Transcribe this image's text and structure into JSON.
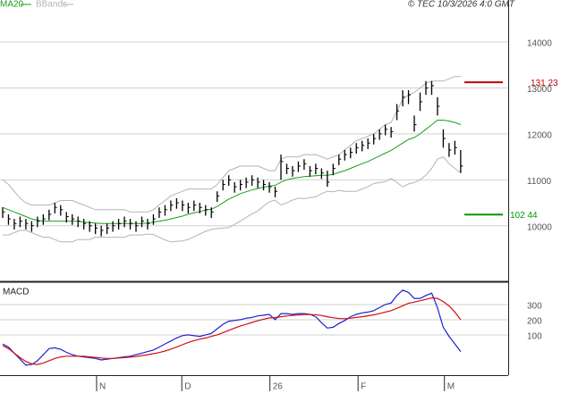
{
  "chart_data": [
    {
      "type": "ohlc",
      "source": "© TEC 10/3/2026 4:0 GMT",
      "xlim": [
        -0.46,
        87.2
      ],
      "ylim": [
        8790,
        14915
      ],
      "yticks": [
        {
          "value": 10000,
          "label": "10000"
        },
        {
          "value": 11000,
          "label": "11000"
        },
        {
          "value": 12000,
          "label": "12000"
        },
        {
          "value": 13000,
          "label": "13000"
        },
        {
          "value": 14000,
          "label": "14000"
        }
      ],
      "grid": true,
      "bar_color": "#000000",
      "high": [
        10400,
        10250,
        10150,
        10200,
        10150,
        10100,
        10200,
        10250,
        10350,
        10500,
        10450,
        10300,
        10250,
        10200,
        10150,
        10100,
        10050,
        10000,
        10050,
        10100,
        10150,
        10200,
        10150,
        10100,
        10200,
        10150,
        10250,
        10400,
        10450,
        10550,
        10600,
        10550,
        10500,
        10550,
        10500,
        10450,
        10400,
        10750,
        11000,
        11100,
        10950,
        11000,
        11050,
        11100,
        11050,
        11000,
        10950,
        10850,
        11550,
        11350,
        11300,
        11400,
        11450,
        11300,
        11350,
        11250,
        11200,
        11350,
        11550,
        11650,
        11700,
        11800,
        11850,
        11900,
        12000,
        12100,
        12200,
        12150,
        12650,
        12950,
        12950,
        12400,
        12900,
        13150,
        13150,
        12800,
        12100,
        11800,
        11850,
        11650
      ],
      "low": [
        10170,
        10020,
        9920,
        9970,
        9920,
        9870,
        9970,
        10020,
        10120,
        10270,
        10220,
        10070,
        10020,
        9970,
        9920,
        9870,
        9820,
        9770,
        9820,
        9870,
        9920,
        9970,
        9920,
        9870,
        9970,
        9920,
        10020,
        10170,
        10220,
        10320,
        10370,
        10320,
        10270,
        10320,
        10270,
        10220,
        10170,
        10520,
        10770,
        10870,
        10720,
        10770,
        10820,
        10870,
        10820,
        10770,
        10720,
        10620,
        11000,
        11120,
        11070,
        11170,
        11220,
        11070,
        11120,
        11020,
        10850,
        11100,
        11320,
        11420,
        11470,
        11570,
        11620,
        11670,
        11770,
        11870,
        11970,
        11920,
        12300,
        12600,
        12650,
        12050,
        12500,
        12850,
        12850,
        12400,
        11700,
        11500,
        11550,
        11150
      ],
      "close": [
        10300,
        10150,
        10050,
        10100,
        10050,
        10000,
        10100,
        10150,
        10250,
        10400,
        10350,
        10200,
        10150,
        10100,
        10050,
        10000,
        9950,
        9900,
        9950,
        10000,
        10050,
        10100,
        10050,
        10000,
        10100,
        10050,
        10150,
        10300,
        10350,
        10450,
        10500,
        10450,
        10400,
        10450,
        10400,
        10350,
        10300,
        10650,
        10900,
        11000,
        10850,
        10900,
        10950,
        11000,
        10950,
        10900,
        10850,
        10750,
        11400,
        11250,
        11200,
        11300,
        11350,
        11200,
        11250,
        11150,
        10950,
        11250,
        11450,
        11550,
        11600,
        11700,
        11750,
        11800,
        11900,
        12000,
        12100,
        12050,
        12500,
        12800,
        12850,
        12200,
        12700,
        13000,
        13050,
        12600,
        11900,
        11650,
        11700,
        11300
      ],
      "series": [
        {
          "name": "MA20",
          "color": "#1a9e1a",
          "values": [
            10400,
            10350,
            10300,
            10250,
            10200,
            10150,
            10120,
            10100,
            10100,
            10100,
            10100,
            10100,
            10100,
            10100,
            10080,
            10070,
            10060,
            10050,
            10050,
            10050,
            10050,
            10050,
            10050,
            10050,
            10050,
            10060,
            10080,
            10100,
            10120,
            10150,
            10180,
            10210,
            10250,
            10280,
            10310,
            10340,
            10360,
            10420,
            10500,
            10580,
            10640,
            10700,
            10740,
            10780,
            10810,
            10840,
            10860,
            10880,
            10950,
            11000,
            11030,
            11050,
            11070,
            11080,
            11090,
            11100,
            11100,
            11120,
            11160,
            11200,
            11250,
            11300,
            11350,
            11400,
            11460,
            11520,
            11580,
            11640,
            11720,
            11800,
            11880,
            11920,
            12000,
            12100,
            12200,
            12300,
            12300,
            12280,
            12250,
            12200
          ]
        },
        {
          "name": "BBands",
          "color": "#b4b4b4",
          "upper": [
            11000,
            10900,
            10750,
            10600,
            10500,
            10450,
            10450,
            10450,
            10450,
            10500,
            10550,
            10550,
            10550,
            10500,
            10450,
            10400,
            10350,
            10350,
            10350,
            10350,
            10350,
            10350,
            10300,
            10300,
            10300,
            10300,
            10350,
            10450,
            10550,
            10650,
            10700,
            10750,
            10800,
            10800,
            10800,
            10800,
            10800,
            10900,
            11050,
            11200,
            11250,
            11300,
            11300,
            11300,
            11300,
            11250,
            11200,
            11200,
            11450,
            11500,
            11500,
            11500,
            11550,
            11550,
            11550,
            11500,
            11450,
            11500,
            11550,
            11650,
            11750,
            11850,
            11900,
            11950,
            12000,
            12100,
            12200,
            12250,
            12500,
            12750,
            12850,
            12900,
            13000,
            13100,
            13150,
            13150,
            13150,
            13200,
            13250,
            13250
          ],
          "lower": [
            9800,
            9800,
            9850,
            9900,
            9900,
            9850,
            9800,
            9750,
            9750,
            9700,
            9650,
            9650,
            9650,
            9700,
            9700,
            9700,
            9750,
            9750,
            9750,
            9750,
            9750,
            9750,
            9800,
            9800,
            9800,
            9820,
            9810,
            9750,
            9690,
            9650,
            9660,
            9670,
            9700,
            9760,
            9820,
            9880,
            9920,
            9940,
            9950,
            9960,
            10030,
            10100,
            10180,
            10260,
            10320,
            10430,
            10520,
            10560,
            10450,
            10500,
            10560,
            10600,
            10590,
            10610,
            10630,
            10700,
            10750,
            10740,
            10770,
            10750,
            10750,
            10750,
            10800,
            10850,
            10920,
            10940,
            10960,
            11030,
            10940,
            10850,
            10910,
            10940,
            11000,
            11100,
            11250,
            11450,
            11500,
            11350,
            11250,
            11150
          ]
        }
      ],
      "levels": [
        {
          "value": 13123,
          "label": "131 23",
          "color": "#c00000"
        },
        {
          "value": 10244,
          "label": "102 44",
          "color": "#009900"
        }
      ]
    },
    {
      "type": "line",
      "title": "MACD",
      "xlim": [
        -0.46,
        87.2
      ],
      "ylim": [
        -165,
        435
      ],
      "yticks": [
        100,
        200,
        300
      ],
      "grid": true,
      "xticks": [
        {
          "value": 16.2,
          "label": "N"
        },
        {
          "value": 30.9,
          "label": "D"
        },
        {
          "value": 46.1,
          "label": "26"
        },
        {
          "value": 61.3,
          "label": "F"
        },
        {
          "value": 76.2,
          "label": "M"
        }
      ],
      "series": [
        {
          "color": "#1f1fd0",
          "values": [
            40,
            20,
            -20,
            -60,
            -100,
            -95,
            -70,
            -30,
            10,
            15,
            5,
            -15,
            -30,
            -40,
            -45,
            -50,
            -55,
            -65,
            -60,
            -55,
            -50,
            -45,
            -40,
            -30,
            -20,
            -10,
            0,
            20,
            40,
            60,
            80,
            95,
            100,
            95,
            90,
            100,
            110,
            140,
            170,
            190,
            195,
            200,
            210,
            215,
            225,
            230,
            235,
            200,
            240,
            240,
            235,
            240,
            240,
            235,
            220,
            180,
            145,
            150,
            175,
            195,
            220,
            235,
            245,
            250,
            260,
            280,
            300,
            310,
            360,
            395,
            380,
            340,
            340,
            360,
            375,
            280,
            150,
            90,
            40,
            -10
          ]
        },
        {
          "color": "#d01010",
          "values": [
            30,
            10,
            -20,
            -50,
            -75,
            -90,
            -95,
            -85,
            -70,
            -55,
            -45,
            -40,
            -40,
            -40,
            -40,
            -45,
            -48,
            -52,
            -55,
            -55,
            -52,
            -50,
            -46,
            -42,
            -36,
            -30,
            -24,
            -16,
            -6,
            6,
            20,
            35,
            50,
            62,
            72,
            80,
            90,
            100,
            115,
            130,
            145,
            158,
            170,
            182,
            193,
            203,
            212,
            214,
            220,
            225,
            228,
            231,
            234,
            234,
            233,
            228,
            220,
            213,
            208,
            207,
            210,
            215,
            220,
            226,
            232,
            240,
            250,
            260,
            275,
            292,
            308,
            316,
            325,
            334,
            344,
            340,
            320,
            290,
            250,
            200
          ]
        }
      ]
    }
  ]
}
